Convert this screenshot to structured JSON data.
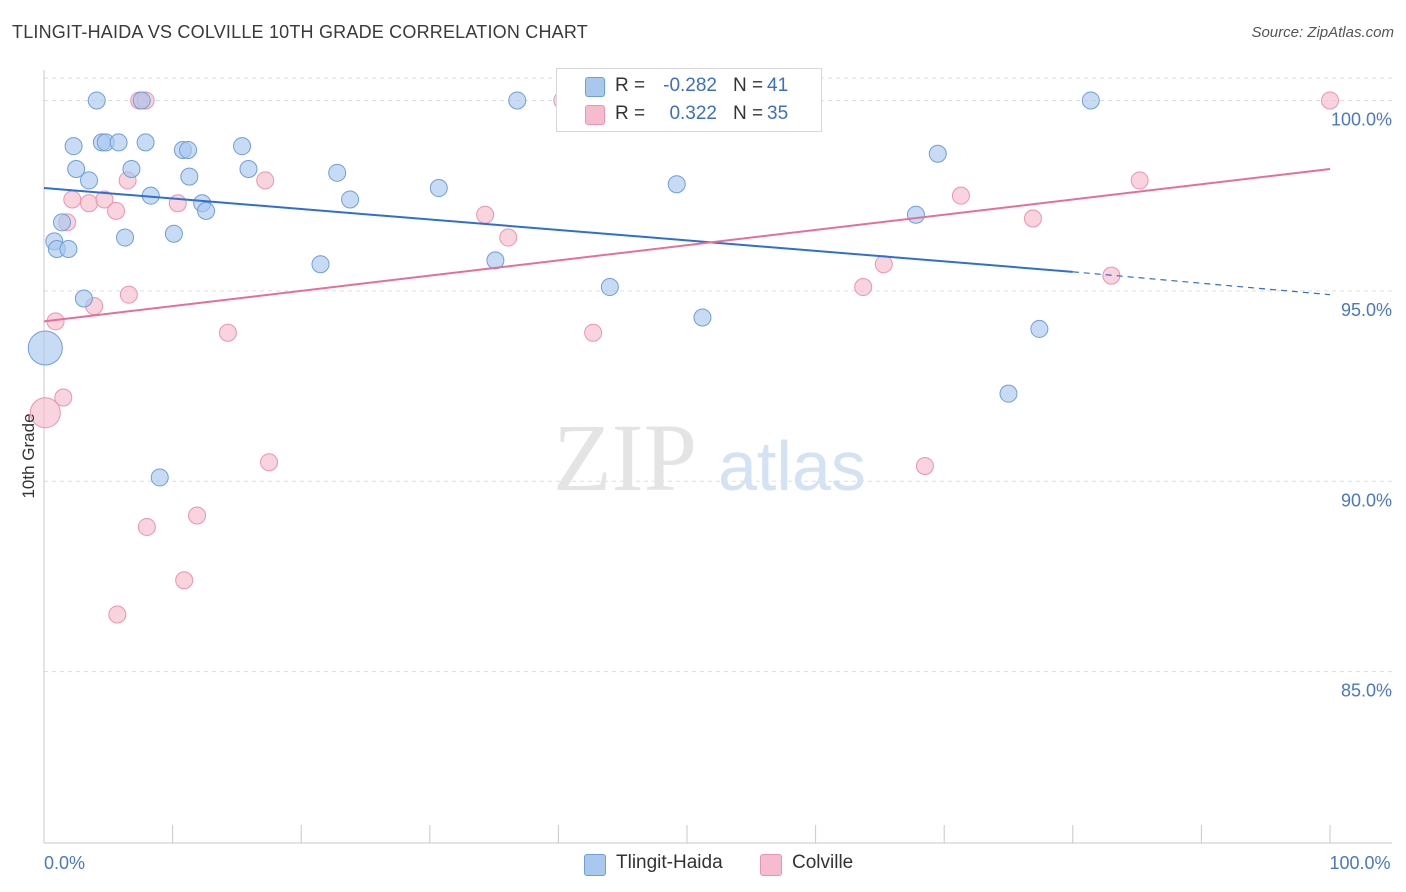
{
  "header": {
    "title": "TLINGIT-HAIDA VS COLVILLE 10TH GRADE CORRELATION CHART",
    "source": "Source: ZipAtlas.com"
  },
  "watermark": {
    "zip": "ZIP",
    "atlas": "atlas"
  },
  "legend": {
    "series1": {
      "r_label": "R =",
      "r_value": "-0.282",
      "n_label": "N =",
      "n_value": "41"
    },
    "series2": {
      "r_label": "R =",
      "r_value": "0.322",
      "n_label": "N =",
      "n_value": "35"
    }
  },
  "bottom_legend": {
    "series1": "Tlingit-Haida",
    "series2": "Colville"
  },
  "colors": {
    "series1_fill": "#a9c8ee",
    "series1_stroke": "#6f9fd8",
    "series1_line": "#2f6fce",
    "series2_fill": "#f6bccd",
    "series2_stroke": "#ea95b0",
    "series2_line": "#e3709a",
    "tick_text": "#4a78c2",
    "grid": "#dddddd"
  },
  "chart_data": {
    "type": "scatter",
    "title": "TLINGIT-HAIDA VS COLVILLE 10TH GRADE CORRELATION CHART",
    "xlabel": "",
    "ylabel": "10th Grade",
    "xlim": [
      0,
      100
    ],
    "ylim": [
      80.5,
      100.8
    ],
    "x_ticks": [
      0,
      100
    ],
    "x_tick_labels": [
      "0.0%",
      "100.0%"
    ],
    "y_ticks": [
      85,
      90,
      95,
      100
    ],
    "y_tick_labels": [
      "85.0%",
      "90.0%",
      "95.0%",
      "100.0%"
    ],
    "grid": "horizontal dashed",
    "legend_placement": "top-center",
    "series": [
      {
        "name": "Tlingit-Haida",
        "r": -0.282,
        "n": 41,
        "trend": {
          "x": [
            0,
            80
          ],
          "y": [
            97.7,
            95.5
          ],
          "dashed_to": [
            100,
            94.9
          ]
        },
        "points": [
          [
            0.1,
            93.5
          ],
          [
            0.8,
            96.3
          ],
          [
            1.0,
            96.1
          ],
          [
            1.4,
            96.8
          ],
          [
            1.9,
            96.1
          ],
          [
            2.3,
            98.8
          ],
          [
            2.5,
            98.2
          ],
          [
            3.1,
            94.8
          ],
          [
            3.5,
            97.9
          ],
          [
            4.1,
            100.0
          ],
          [
            4.5,
            98.9
          ],
          [
            4.8,
            98.9
          ],
          [
            5.8,
            98.9
          ],
          [
            6.3,
            96.4
          ],
          [
            6.8,
            98.2
          ],
          [
            7.6,
            100.0
          ],
          [
            7.9,
            98.9
          ],
          [
            8.3,
            97.5
          ],
          [
            9.0,
            90.1
          ],
          [
            10.1,
            96.5
          ],
          [
            10.8,
            98.7
          ],
          [
            11.2,
            98.7
          ],
          [
            11.3,
            98.0
          ],
          [
            12.3,
            97.3
          ],
          [
            12.6,
            97.1
          ],
          [
            15.4,
            98.8
          ],
          [
            15.9,
            98.2
          ],
          [
            21.5,
            95.7
          ],
          [
            22.8,
            98.1
          ],
          [
            23.8,
            97.4
          ],
          [
            30.7,
            97.7
          ],
          [
            35.1,
            95.8
          ],
          [
            36.8,
            100.0
          ],
          [
            44.0,
            95.1
          ],
          [
            49.2,
            97.8
          ],
          [
            51.2,
            94.3
          ],
          [
            69.5,
            98.6
          ],
          [
            67.8,
            97.0
          ],
          [
            75.0,
            92.3
          ],
          [
            77.4,
            94.0
          ],
          [
            81.4,
            100.0
          ]
        ]
      },
      {
        "name": "Colville",
        "r": 0.322,
        "n": 35,
        "trend": {
          "x": [
            0,
            100
          ],
          "y": [
            94.2,
            98.2
          ]
        },
        "points": [
          [
            0.1,
            91.8
          ],
          [
            0.9,
            94.2
          ],
          [
            1.5,
            92.2
          ],
          [
            1.8,
            96.8
          ],
          [
            2.2,
            97.4
          ],
          [
            3.5,
            97.3
          ],
          [
            3.9,
            94.6
          ],
          [
            4.7,
            97.4
          ],
          [
            5.6,
            97.1
          ],
          [
            5.7,
            86.5
          ],
          [
            6.5,
            97.9
          ],
          [
            6.6,
            94.9
          ],
          [
            7.4,
            100.0
          ],
          [
            7.9,
            100.0
          ],
          [
            8.0,
            88.8
          ],
          [
            10.4,
            97.3
          ],
          [
            10.9,
            87.4
          ],
          [
            11.9,
            89.1
          ],
          [
            14.3,
            93.9
          ],
          [
            17.2,
            97.9
          ],
          [
            17.5,
            90.5
          ],
          [
            34.3,
            97.0
          ],
          [
            36.1,
            96.4
          ],
          [
            40.3,
            100.0
          ],
          [
            42.7,
            93.9
          ],
          [
            46.6,
            100.0
          ],
          [
            53.6,
            100.0
          ],
          [
            63.7,
            95.1
          ],
          [
            65.3,
            95.7
          ],
          [
            68.5,
            90.4
          ],
          [
            71.3,
            97.5
          ],
          [
            76.9,
            96.9
          ],
          [
            83.0,
            95.4
          ],
          [
            85.2,
            97.9
          ],
          [
            100.0,
            100.0
          ]
        ]
      }
    ]
  }
}
